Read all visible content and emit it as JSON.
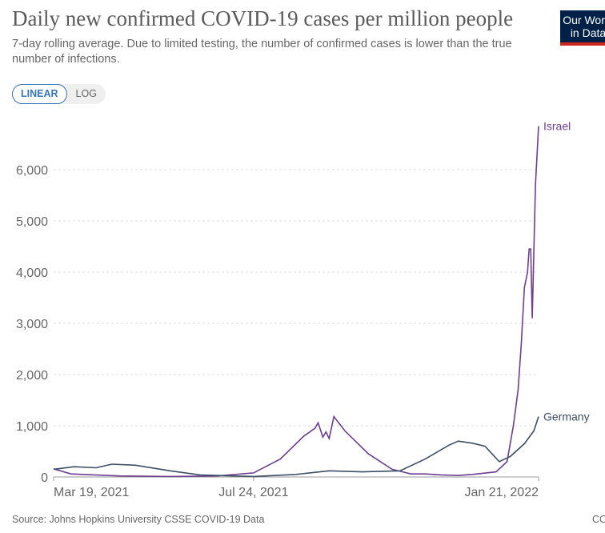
{
  "header": {
    "title": "Daily new confirmed COVID-19 cases per million people",
    "subtitle": "7-day rolling average. Due to limited testing, the number of confirmed cases is lower than the true number of infections.",
    "logo": "Our World in Data"
  },
  "controls": {
    "linear": "LINEAR",
    "log": "LOG",
    "selected": "LINEAR"
  },
  "footer": {
    "source": "Source: Johns Hopkins University CSSE COVID-19 Data",
    "license": "CC"
  },
  "chart_data": {
    "type": "line",
    "title": "Daily new confirmed COVID-19 cases per million people",
    "ylim": [
      0,
      6900
    ],
    "yticks": [
      0,
      1000,
      2000,
      3000,
      4000,
      5000,
      6000
    ],
    "ytick_labels": [
      "0",
      "1,000",
      "2,000",
      "3,000",
      "4,000",
      "5,000",
      "6,000"
    ],
    "xlim": [
      "2021-03-19",
      "2022-01-21"
    ],
    "xticks": [
      "2021-03-19",
      "2021-07-24",
      "2022-01-21"
    ],
    "xtick_labels": [
      "Mar 19, 2021",
      "Jul 24, 2021",
      "Jan 21, 2022"
    ],
    "grid": "horizontal dashed",
    "legend": "inline-end-labels",
    "series": [
      {
        "name": "Israel",
        "color": "#6d3e91",
        "points": [
          [
            "2021-03-19",
            160
          ],
          [
            "2021-03-30",
            60
          ],
          [
            "2021-04-30",
            20
          ],
          [
            "2021-06-01",
            10
          ],
          [
            "2021-07-01",
            20
          ],
          [
            "2021-07-24",
            80
          ],
          [
            "2021-08-10",
            350
          ],
          [
            "2021-08-25",
            800
          ],
          [
            "2021-09-01",
            950
          ],
          [
            "2021-09-03",
            1060
          ],
          [
            "2021-09-06",
            780
          ],
          [
            "2021-09-08",
            880
          ],
          [
            "2021-09-10",
            750
          ],
          [
            "2021-09-13",
            1180
          ],
          [
            "2021-09-20",
            900
          ],
          [
            "2021-10-05",
            450
          ],
          [
            "2021-10-20",
            150
          ],
          [
            "2021-11-01",
            60
          ],
          [
            "2021-11-10",
            60
          ],
          [
            "2021-11-20",
            40
          ],
          [
            "2021-12-01",
            30
          ],
          [
            "2021-12-10",
            50
          ],
          [
            "2021-12-25",
            100
          ],
          [
            "2022-01-01",
            300
          ],
          [
            "2022-01-05",
            1000
          ],
          [
            "2022-01-08",
            1700
          ],
          [
            "2022-01-10",
            2600
          ],
          [
            "2022-01-12",
            3700
          ],
          [
            "2022-01-14",
            4000
          ],
          [
            "2022-01-15",
            4450
          ],
          [
            "2022-01-16",
            4450
          ],
          [
            "2022-01-17",
            3100
          ],
          [
            "2022-01-19",
            5700
          ],
          [
            "2022-01-21",
            6850
          ]
        ]
      },
      {
        "name": "Germany",
        "color": "#3c4e66",
        "points": [
          [
            "2021-03-19",
            150
          ],
          [
            "2021-04-01",
            200
          ],
          [
            "2021-04-15",
            180
          ],
          [
            "2021-04-25",
            250
          ],
          [
            "2021-05-10",
            230
          ],
          [
            "2021-06-01",
            120
          ],
          [
            "2021-06-20",
            40
          ],
          [
            "2021-07-24",
            10
          ],
          [
            "2021-08-20",
            50
          ],
          [
            "2021-09-10",
            120
          ],
          [
            "2021-10-01",
            100
          ],
          [
            "2021-10-25",
            120
          ],
          [
            "2021-11-10",
            350
          ],
          [
            "2021-11-25",
            620
          ],
          [
            "2021-12-01",
            700
          ],
          [
            "2021-12-10",
            660
          ],
          [
            "2021-12-18",
            600
          ],
          [
            "2021-12-27",
            300
          ],
          [
            "2022-01-03",
            400
          ],
          [
            "2022-01-12",
            650
          ],
          [
            "2022-01-18",
            900
          ],
          [
            "2022-01-21",
            1180
          ]
        ]
      }
    ]
  }
}
